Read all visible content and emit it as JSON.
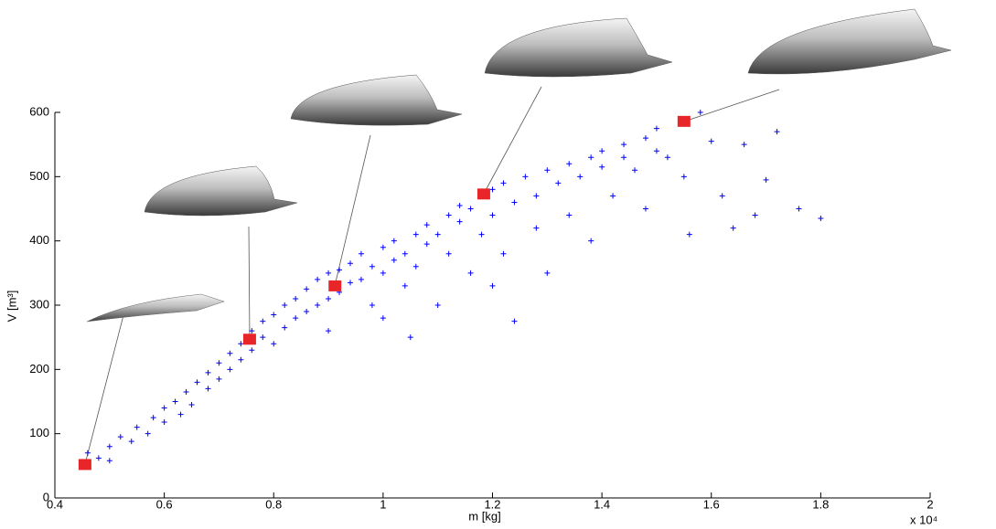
{
  "chart_data": {
    "type": "scatter",
    "xlabel": "m [kg]",
    "ylabel": "V [m³]",
    "x_multiplier": "x 10⁴",
    "xlim": [
      0.4,
      2
    ],
    "xticks": [
      0.4,
      0.6,
      0.8,
      1,
      1.2,
      1.4,
      1.6,
      1.8,
      2
    ],
    "ylim": [
      0,
      600
    ],
    "yticks": [
      0,
      100,
      200,
      300,
      400,
      500,
      600
    ],
    "grid": false,
    "series": [
      {
        "color": "#0000ff",
        "marker": "+",
        "x": [
          0.46,
          0.48,
          0.5,
          0.5,
          0.52,
          0.54,
          0.55,
          0.57,
          0.58,
          0.6,
          0.6,
          0.62,
          0.63,
          0.64,
          0.65,
          0.66,
          0.68,
          0.68,
          0.7,
          0.7,
          0.72,
          0.72,
          0.74,
          0.74,
          0.76,
          0.76,
          0.78,
          0.78,
          0.8,
          0.8,
          0.82,
          0.82,
          0.84,
          0.84,
          0.86,
          0.86,
          0.88,
          0.88,
          0.9,
          0.9,
          0.92,
          0.92,
          0.94,
          0.94,
          0.96,
          0.96,
          0.98,
          0.98,
          1.0,
          1.0,
          1.0,
          1.02,
          1.02,
          1.04,
          1.04,
          1.06,
          1.06,
          1.08,
          1.08,
          1.1,
          1.1,
          1.12,
          1.12,
          1.14,
          1.14,
          1.16,
          1.16,
          1.18,
          1.18,
          1.2,
          1.2,
          1.22,
          1.22,
          1.24,
          1.24,
          1.26,
          1.28,
          1.28,
          1.3,
          1.3,
          1.32,
          1.34,
          1.34,
          1.36,
          1.38,
          1.38,
          1.4,
          1.4,
          1.42,
          1.44,
          1.44,
          1.46,
          1.48,
          1.48,
          1.5,
          1.5,
          1.52,
          1.55,
          1.56,
          1.58,
          1.6,
          1.62,
          1.64,
          1.66,
          1.68,
          1.7,
          1.72,
          1.76,
          1.8,
          1.2,
          0.9,
          1.05
        ],
        "values": [
          70,
          62,
          80,
          58,
          95,
          88,
          110,
          100,
          125,
          118,
          140,
          150,
          130,
          165,
          145,
          180,
          170,
          195,
          185,
          210,
          200,
          225,
          215,
          240,
          230,
          260,
          250,
          275,
          240,
          285,
          265,
          300,
          280,
          310,
          290,
          325,
          300,
          340,
          310,
          350,
          320,
          355,
          335,
          365,
          340,
          380,
          300,
          360,
          350,
          390,
          280,
          370,
          400,
          330,
          380,
          410,
          360,
          395,
          425,
          300,
          410,
          440,
          380,
          430,
          455,
          350,
          450,
          470,
          410,
          480,
          440,
          490,
          380,
          275,
          460,
          500,
          470,
          420,
          510,
          350,
          490,
          520,
          440,
          500,
          530,
          400,
          515,
          540,
          470,
          530,
          550,
          510,
          560,
          450,
          575,
          540,
          530,
          500,
          410,
          600,
          555,
          470,
          420,
          550,
          440,
          495,
          570,
          450,
          435,
          330,
          260,
          250
        ]
      },
      {
        "color": "#e8262a",
        "marker": "square",
        "x": [
          0.455,
          0.756,
          0.912,
          1.184,
          1.55
        ],
        "values": [
          52,
          247,
          330,
          473,
          586
        ]
      }
    ]
  }
}
